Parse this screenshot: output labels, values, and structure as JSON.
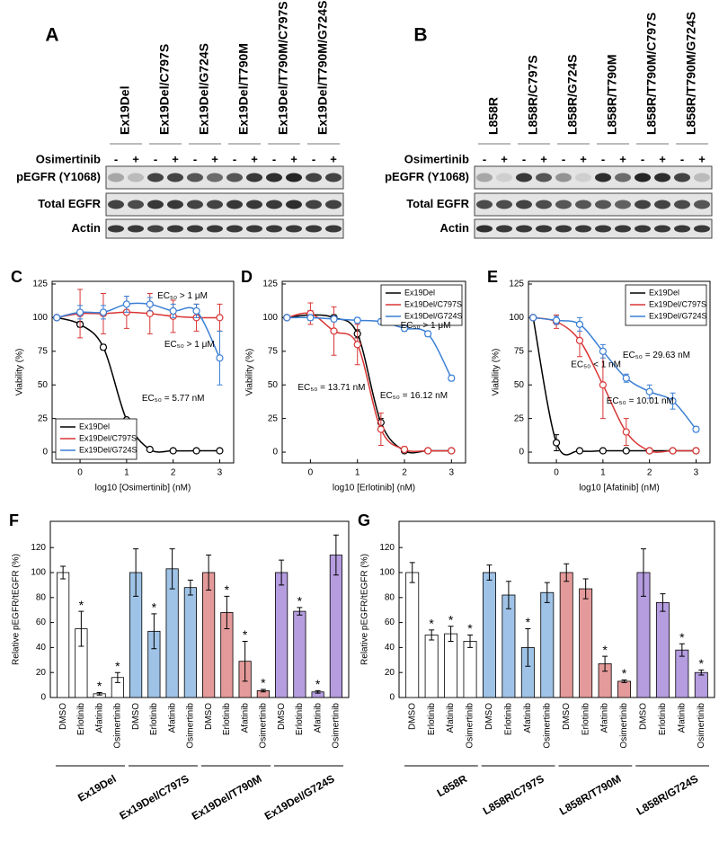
{
  "blots": [
    {
      "panel": "A",
      "columns": [
        "Ex19Del",
        "Ex19Del/C797S",
        "Ex19Del/G724S",
        "Ex19Del/T790M",
        "Ex19Del/T790M/C797S",
        "Ex19Del/T790M/G724S"
      ],
      "treatment": "Osimertinib",
      "lanes": [
        "-",
        "+"
      ],
      "rows": [
        "pEGFR (Y1068)",
        "Total EGFR",
        "Actin"
      ]
    },
    {
      "panel": "B",
      "columns": [
        "L858R",
        "L858R/C797S",
        "L858R/G724S",
        "L858R/T790M",
        "L858R/T790M/C797S",
        "L858R/T790M/G724S"
      ],
      "treatment": "Osimertinib",
      "lanes": [
        "-",
        "+"
      ],
      "rows": [
        "pEGFR (Y1068)",
        "Total EGFR",
        "Actin"
      ]
    }
  ],
  "chart_data": [
    {
      "panel": "C",
      "type": "line",
      "xlabel": "log10 [Osimertinib] (nM)",
      "ylabel": "Viability (%)",
      "x": [
        -0.5,
        0,
        0.5,
        1,
        1.5,
        2,
        2.5,
        3
      ],
      "xlim": [
        -0.6,
        3.3
      ],
      "ylim": [
        -8,
        127
      ],
      "xticks": [
        0,
        1,
        2,
        3
      ],
      "yticks": [
        0,
        25,
        50,
        75,
        100,
        125
      ],
      "legend": "lower left",
      "series": [
        {
          "name": "Ex19Del",
          "color": "#000000",
          "values": [
            100,
            95,
            78,
            24,
            2,
            1,
            1,
            1
          ],
          "errors": [
            1,
            2,
            2,
            1,
            1,
            1,
            1,
            1
          ]
        },
        {
          "name": "Ex19Del/C797S",
          "color": "#d93636",
          "values": [
            100,
            103,
            103,
            104,
            103,
            101,
            100,
            100
          ],
          "errors": [
            1,
            18,
            15,
            12,
            15,
            12,
            10,
            10
          ]
        },
        {
          "name": "Ex19Del/G724S",
          "color": "#3a7fd5",
          "values": [
            100,
            104,
            104,
            110,
            110,
            105,
            105,
            70
          ],
          "errors": [
            1,
            5,
            5,
            6,
            5,
            5,
            5,
            20
          ]
        }
      ],
      "annotations": [
        {
          "text": "EC₅₀ > 1 μM",
          "color": "#d93636"
        },
        {
          "text": "EC₅₀ > 1 μM",
          "color": "#3a7fd5"
        },
        {
          "text": "EC₅₀ = 5.77 nM",
          "color": "#000000"
        }
      ]
    },
    {
      "panel": "D",
      "type": "line",
      "xlabel": "log10 [Erlotinib] (nM)",
      "ylabel": "Viability (%)",
      "x": [
        -0.5,
        0,
        0.5,
        1,
        1.5,
        2,
        2.5,
        3
      ],
      "xlim": [
        -0.6,
        3.3
      ],
      "ylim": [
        -8,
        127
      ],
      "xticks": [
        0,
        1,
        2,
        3
      ],
      "yticks": [
        0,
        25,
        50,
        75,
        100,
        125
      ],
      "legend": "upper right",
      "series": [
        {
          "name": "Ex19Del",
          "color": "#000000",
          "values": [
            100,
            102,
            100,
            88,
            22,
            1,
            1,
            1
          ],
          "errors": [
            1,
            3,
            2,
            3,
            3,
            1,
            1,
            1
          ]
        },
        {
          "name": "Ex19Del/C797S",
          "color": "#d93636",
          "values": [
            100,
            103,
            90,
            80,
            17,
            2,
            1,
            1
          ],
          "errors": [
            1,
            8,
            18,
            15,
            12,
            2,
            1,
            1
          ]
        },
        {
          "name": "Ex19Del/G724S",
          "color": "#3a7fd5",
          "values": [
            100,
            100,
            99,
            98,
            97,
            92,
            88,
            55
          ],
          "errors": [
            1,
            2,
            2,
            2,
            2,
            2,
            2,
            2
          ]
        }
      ],
      "annotations": [
        {
          "text": "EC₅₀ > 1 μM",
          "color": "#3a7fd5"
        },
        {
          "text": "EC₅₀ = 13.71 nM",
          "color": "#d93636"
        },
        {
          "text": "EC₅₀ = 16.12 nM",
          "color": "#000000"
        }
      ]
    },
    {
      "panel": "E",
      "type": "line",
      "xlabel": "log10 [Afatinib] (nM)",
      "ylabel": "Viability (%)",
      "x": [
        -0.5,
        0,
        0.5,
        1,
        1.5,
        2,
        2.5,
        3
      ],
      "xlim": [
        -0.6,
        3.3
      ],
      "ylim": [
        -8,
        127
      ],
      "xticks": [
        0,
        1,
        2,
        3
      ],
      "yticks": [
        0,
        25,
        50,
        75,
        100,
        125
      ],
      "legend": "upper right",
      "series": [
        {
          "name": "Ex19Del",
          "color": "#000000",
          "values": [
            100,
            7,
            1,
            1,
            1,
            1,
            1,
            1
          ],
          "errors": [
            1,
            6,
            1,
            1,
            1,
            1,
            1,
            1
          ]
        },
        {
          "name": "Ex19Del/C797S",
          "color": "#d93636",
          "values": [
            100,
            97,
            83,
            50,
            15,
            1,
            1,
            1
          ],
          "errors": [
            1,
            5,
            12,
            25,
            10,
            1,
            1,
            1
          ]
        },
        {
          "name": "Ex19Del/G724S",
          "color": "#3a7fd5",
          "values": [
            100,
            98,
            95,
            75,
            55,
            45,
            38,
            17
          ],
          "errors": [
            1,
            3,
            5,
            5,
            3,
            5,
            6,
            2
          ]
        }
      ],
      "annotations": [
        {
          "text": "EC₅₀ < 1 nM",
          "color": "#000000"
        },
        {
          "text": "EC₅₀ = 29.63 nM",
          "color": "#3a7fd5"
        },
        {
          "text": "EC₅₀ = 10.01 nM",
          "color": "#d93636"
        }
      ]
    },
    {
      "panel": "F",
      "type": "bar",
      "ylabel": "Relative pEGFR/tEGFR (%)",
      "ylim": [
        0,
        141
      ],
      "yticks": [
        0,
        20,
        40,
        60,
        80,
        100,
        120
      ],
      "categories": [
        "DMSO",
        "Erlotinib",
        "Afatinib",
        "Osimertinib"
      ],
      "series": [
        {
          "name": "Ex19Del",
          "color": "#ffffff",
          "values": [
            100,
            55,
            3,
            16
          ],
          "errors": [
            5,
            14,
            1,
            4
          ],
          "annotations": [
            null,
            "*",
            "*",
            "*"
          ]
        },
        {
          "name": "Ex19Del/C797S",
          "color": "#9fc3e7",
          "values": [
            100,
            53,
            103,
            88
          ],
          "errors": [
            19,
            14,
            16,
            6
          ],
          "annotations": [
            null,
            "*",
            null,
            null
          ]
        },
        {
          "name": "Ex19Del/T790M",
          "color": "#e49a9a",
          "values": [
            100,
            68,
            29,
            5.5
          ],
          "errors": [
            14,
            13,
            16,
            1
          ],
          "annotations": [
            null,
            "*",
            "*",
            "*"
          ]
        },
        {
          "name": "Ex19Del/G724S",
          "color": "#b59de0",
          "values": [
            100,
            69,
            4.5,
            114
          ],
          "errors": [
            10,
            3,
            1,
            16
          ],
          "annotations": [
            null,
            "*",
            "*",
            null
          ]
        }
      ]
    },
    {
      "panel": "G",
      "type": "bar",
      "ylabel": "Relative pEGFR/tEGFR (%)",
      "ylim": [
        0,
        141
      ],
      "yticks": [
        0,
        20,
        40,
        60,
        80,
        100,
        120
      ],
      "categories": [
        "DMSO",
        "Erlotinib",
        "Afatinib",
        "Osimertinib"
      ],
      "series": [
        {
          "name": "L858R",
          "color": "#ffffff",
          "values": [
            100,
            50,
            51,
            45
          ],
          "errors": [
            8,
            4,
            6,
            5
          ],
          "annotations": [
            null,
            "*",
            "*",
            "*"
          ]
        },
        {
          "name": "L858R/C797S",
          "color": "#9fc3e7",
          "values": [
            100,
            82,
            40,
            84
          ],
          "errors": [
            6,
            11,
            15,
            8
          ],
          "annotations": [
            null,
            null,
            "*",
            null
          ]
        },
        {
          "name": "L858R/T790M",
          "color": "#e49a9a",
          "values": [
            100,
            87,
            27,
            13
          ],
          "errors": [
            7,
            8,
            6,
            1
          ],
          "annotations": [
            null,
            null,
            "*",
            "*"
          ]
        },
        {
          "name": "L858R/G724S",
          "color": "#b59de0",
          "values": [
            100,
            76,
            38,
            20
          ],
          "errors": [
            19,
            7,
            5,
            2
          ],
          "annotations": [
            null,
            null,
            "*",
            "*"
          ]
        }
      ]
    }
  ]
}
